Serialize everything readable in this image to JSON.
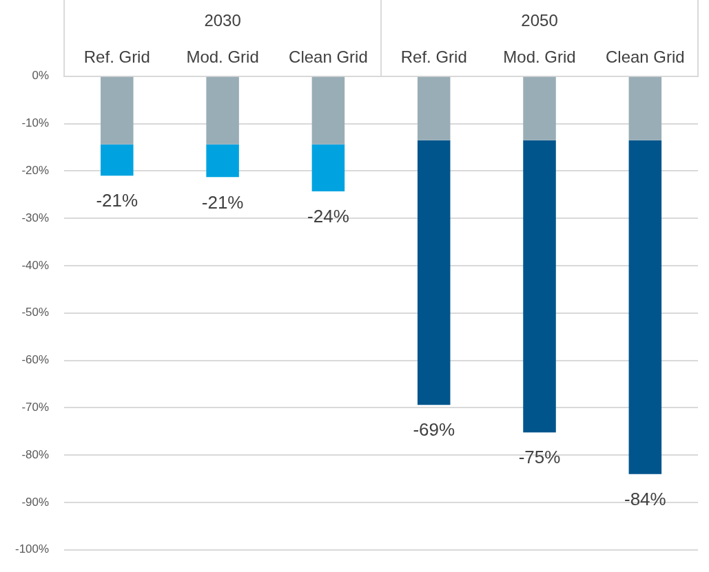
{
  "chart_data": {
    "type": "bar",
    "stacked": true,
    "categories": [
      "Ref. Grid",
      "Mod. Grid",
      "Clean Grid",
      "Ref. Grid",
      "Mod. Grid",
      "Clean Grid"
    ],
    "series": [
      {
        "color": "#99adb6",
        "values": [
          -14.4,
          -14.4,
          -14.4,
          -13.5,
          -13.5,
          -13.5
        ]
      },
      {
        "color": "#00a3e0",
        "values": [
          -6.6,
          -6.9,
          -9.9,
          null,
          null,
          null
        ]
      },
      {
        "color": "#00558c",
        "values": [
          null,
          null,
          null,
          -55.9,
          -61.7,
          -70.5
        ]
      }
    ],
    "totals": [
      "-21%",
      "-21%",
      "-24%",
      "-69%",
      "-75%",
      "-84%"
    ],
    "annotations": [
      "2030",
      "2050"
    ],
    "ylim": [
      -100,
      0
    ],
    "yticks": [
      {
        "value": 0,
        "label": "0%"
      },
      {
        "value": -10,
        "label": "-10%"
      },
      {
        "value": -20,
        "label": "-20%"
      },
      {
        "value": -30,
        "label": "-30%"
      },
      {
        "value": -40,
        "label": "-40%"
      },
      {
        "value": -50,
        "label": "-50%"
      },
      {
        "value": -60,
        "label": "-60%"
      },
      {
        "value": -70,
        "label": "-70%"
      },
      {
        "value": -80,
        "label": "-80%"
      },
      {
        "value": -90,
        "label": "-90%"
      },
      {
        "value": -100,
        "label": "-100%"
      }
    ],
    "grid": "y",
    "legend": false
  }
}
